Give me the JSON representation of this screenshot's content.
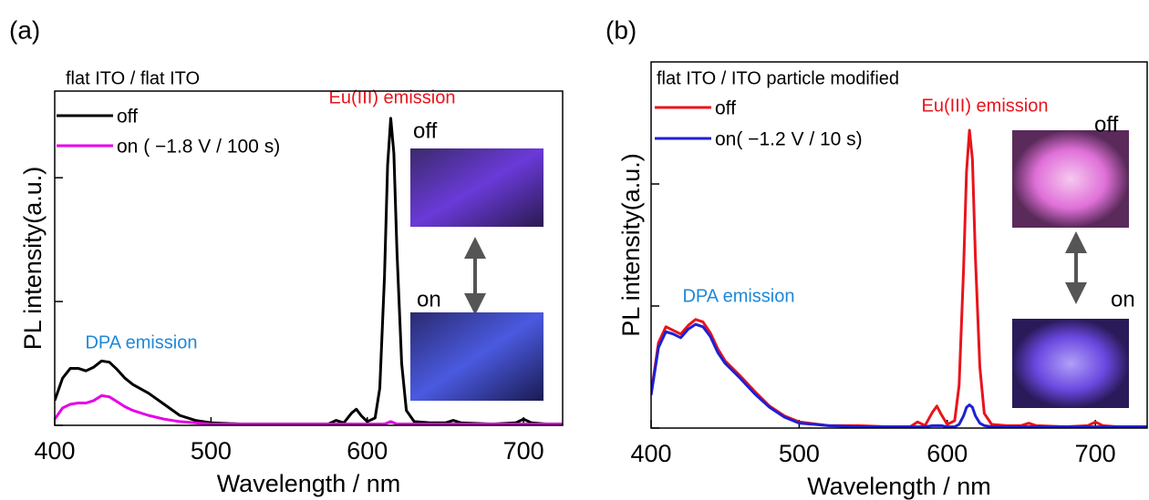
{
  "chart_data": [
    {
      "type": "line",
      "panel": "(a)",
      "xlabel": "Wavelength / nm",
      "ylabel": "PL intensity(a.u.)",
      "xlim": [
        400,
        725
      ],
      "ylim": [
        0,
        2.7
      ],
      "xticks": [
        400,
        500,
        600,
        700
      ],
      "yticks": [
        0,
        1,
        2
      ],
      "annotations": [
        "flat ITO / flat ITO",
        "Eu(III) emission",
        "DPA emission",
        "off",
        "on"
      ],
      "x": [
        400,
        405,
        410,
        415,
        420,
        425,
        430,
        435,
        440,
        445,
        450,
        460,
        470,
        480,
        490,
        500,
        520,
        540,
        560,
        575,
        580,
        585,
        590,
        593,
        596,
        600,
        605,
        608,
        611,
        613,
        615,
        617,
        619,
        622,
        625,
        630,
        640,
        650,
        655,
        660,
        680,
        695,
        700,
        705,
        715,
        725
      ],
      "series": [
        {
          "name": "off",
          "color": "#000000",
          "values": [
            0.2,
            0.38,
            0.46,
            0.46,
            0.44,
            0.47,
            0.52,
            0.51,
            0.45,
            0.38,
            0.33,
            0.26,
            0.17,
            0.08,
            0.04,
            0.02,
            0.01,
            0.01,
            0.01,
            0.01,
            0.04,
            0.02,
            0.1,
            0.13,
            0.08,
            0.03,
            0.06,
            0.3,
            1.2,
            2.1,
            2.48,
            2.2,
            1.4,
            0.5,
            0.12,
            0.03,
            0.02,
            0.02,
            0.04,
            0.02,
            0.01,
            0.02,
            0.05,
            0.02,
            0.01,
            0.01
          ]
        },
        {
          "name": "on ( −1.8 V / 100 s)",
          "color": "#e600e6",
          "values": [
            0.05,
            0.14,
            0.17,
            0.18,
            0.18,
            0.2,
            0.24,
            0.23,
            0.19,
            0.15,
            0.12,
            0.08,
            0.05,
            0.03,
            0.02,
            0.01,
            0.01,
            0.01,
            0.01,
            0.01,
            0.01,
            0.01,
            0.01,
            0.01,
            0.01,
            0.01,
            0.01,
            0.01,
            0.01,
            0.02,
            0.03,
            0.02,
            0.01,
            0.01,
            0.01,
            0.01,
            0.01,
            0.01,
            0.01,
            0.01,
            0.01,
            0.01,
            0.01,
            0.01,
            0.01,
            0.01
          ]
        }
      ]
    },
    {
      "type": "line",
      "panel": "(b)",
      "xlabel": "Wavelength / nm",
      "ylabel": "PL intensity(a.u.)",
      "xlim": [
        400,
        735
      ],
      "ylim": [
        0,
        3
      ],
      "xticks": [
        400,
        500,
        600,
        700
      ],
      "yticks": [
        0,
        1,
        2
      ],
      "annotations": [
        "flat ITO / ITO particle modified",
        "Eu(III) emission",
        "DPA emission",
        "off",
        "on"
      ],
      "x": [
        400,
        405,
        410,
        415,
        420,
        425,
        430,
        435,
        440,
        445,
        450,
        460,
        470,
        480,
        490,
        500,
        520,
        540,
        560,
        575,
        580,
        585,
        590,
        593,
        596,
        600,
        605,
        608,
        611,
        613,
        615,
        617,
        619,
        622,
        625,
        630,
        640,
        650,
        655,
        660,
        680,
        695,
        700,
        705,
        715,
        735
      ],
      "series": [
        {
          "name": "off",
          "color": "#e8141c",
          "values": [
            0.28,
            0.7,
            0.83,
            0.8,
            0.77,
            0.84,
            0.89,
            0.87,
            0.78,
            0.65,
            0.55,
            0.43,
            0.3,
            0.18,
            0.1,
            0.05,
            0.02,
            0.02,
            0.01,
            0.01,
            0.05,
            0.02,
            0.13,
            0.18,
            0.11,
            0.03,
            0.06,
            0.35,
            1.3,
            2.1,
            2.44,
            2.2,
            1.4,
            0.5,
            0.12,
            0.03,
            0.02,
            0.02,
            0.04,
            0.02,
            0.01,
            0.02,
            0.05,
            0.02,
            0.01,
            0.01
          ]
        },
        {
          "name": "on( −1.2 V / 10 s)",
          "color": "#1f1fd6",
          "values": [
            0.27,
            0.66,
            0.79,
            0.77,
            0.74,
            0.81,
            0.85,
            0.83,
            0.75,
            0.62,
            0.53,
            0.41,
            0.28,
            0.17,
            0.09,
            0.04,
            0.02,
            0.01,
            0.01,
            0.01,
            0.01,
            0.01,
            0.02,
            0.02,
            0.02,
            0.01,
            0.01,
            0.03,
            0.1,
            0.17,
            0.19,
            0.17,
            0.1,
            0.04,
            0.02,
            0.01,
            0.01,
            0.01,
            0.01,
            0.01,
            0.01,
            0.01,
            0.01,
            0.01,
            0.01,
            0.01
          ]
        }
      ]
    }
  ]
}
